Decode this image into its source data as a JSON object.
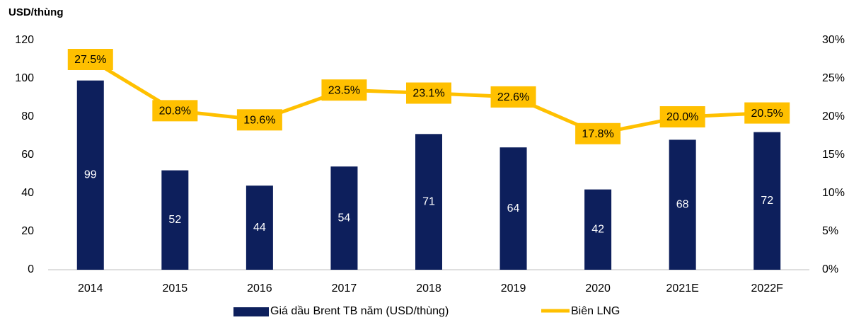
{
  "chart_data": {
    "type": "bar",
    "y_label": "USD/thùng",
    "categories": [
      "2014",
      "2015",
      "2016",
      "2017",
      "2018",
      "2019",
      "2020",
      "2021E",
      "2022F"
    ],
    "series": [
      {
        "name": "Giá dầu Brent TB năm (USD/thùng)",
        "type": "bar",
        "color": "#0d1f5c",
        "values": [
          99,
          52,
          44,
          54,
          71,
          64,
          42,
          68,
          72
        ]
      },
      {
        "name": "Biên LNG",
        "type": "line",
        "axis": "y2",
        "color": "#ffc000",
        "values": [
          27.5,
          20.8,
          19.6,
          23.5,
          23.1,
          22.6,
          17.8,
          20.0,
          20.5
        ],
        "value_labels": [
          "27.5%",
          "20.8%",
          "19.6%",
          "23.5%",
          "23.1%",
          "22.6%",
          "17.8%",
          "20.0%",
          "20.5%"
        ]
      }
    ],
    "ylim": [
      0,
      120
    ],
    "yticks": [
      0,
      20,
      40,
      60,
      80,
      100,
      120
    ],
    "y2lim": [
      0,
      30
    ],
    "y2ticks": [
      {
        "value": 0,
        "label": "0%"
      },
      {
        "value": 5,
        "label": "5%"
      },
      {
        "value": 10,
        "label": "10%"
      },
      {
        "value": 15,
        "label": "15%"
      },
      {
        "value": 20,
        "label": "20%"
      },
      {
        "value": 25,
        "label": "25%"
      },
      {
        "value": 30,
        "label": "30%"
      }
    ],
    "grid": false,
    "legend": "bottom"
  }
}
